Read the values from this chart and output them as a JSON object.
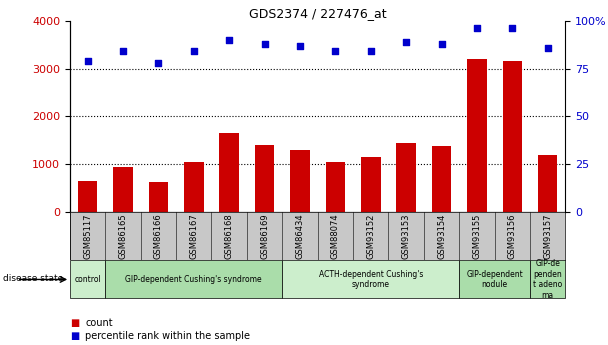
{
  "title": "GDS2374 / 227476_at",
  "samples": [
    "GSM85117",
    "GSM86165",
    "GSM86166",
    "GSM86167",
    "GSM86168",
    "GSM86169",
    "GSM86434",
    "GSM88074",
    "GSM93152",
    "GSM93153",
    "GSM93154",
    "GSM93155",
    "GSM93156",
    "GSM93157"
  ],
  "counts": [
    650,
    950,
    640,
    1050,
    1650,
    1400,
    1300,
    1050,
    1150,
    1450,
    1380,
    3200,
    3150,
    1200
  ],
  "percentiles": [
    79,
    84,
    78,
    84,
    90,
    88,
    87,
    84,
    84,
    89,
    88,
    96,
    96,
    86
  ],
  "bar_color": "#cc0000",
  "dot_color": "#0000cc",
  "ylim_left": [
    0,
    4000
  ],
  "ylim_right": [
    0,
    100
  ],
  "yticks_left": [
    0,
    1000,
    2000,
    3000,
    4000
  ],
  "yticks_right": [
    0,
    25,
    50,
    75,
    100
  ],
  "ytick_labels_right": [
    "0",
    "25",
    "50",
    "75",
    "100%"
  ],
  "disease_groups": [
    {
      "label": "control",
      "start": 0,
      "end": 1,
      "color": "#cceecc"
    },
    {
      "label": "GIP-dependent Cushing's syndrome",
      "start": 1,
      "end": 6,
      "color": "#aaddaa"
    },
    {
      "label": "ACTH-dependent Cushing's\nsyndrome",
      "start": 6,
      "end": 11,
      "color": "#cceecc"
    },
    {
      "label": "GIP-dependent\nnodule",
      "start": 11,
      "end": 13,
      "color": "#aaddaa"
    },
    {
      "label": "GIP-de\npenden\nt adeno\nma",
      "start": 13,
      "end": 14,
      "color": "#aaddaa"
    }
  ],
  "legend_count_label": "count",
  "legend_pct_label": "percentile rank within the sample",
  "disease_state_label": "disease state",
  "bar_color_red": "#cc0000",
  "dot_color_blue": "#0000cc",
  "tick_area_color": "#c8c8c8",
  "grid_dotted_color": "#000000"
}
